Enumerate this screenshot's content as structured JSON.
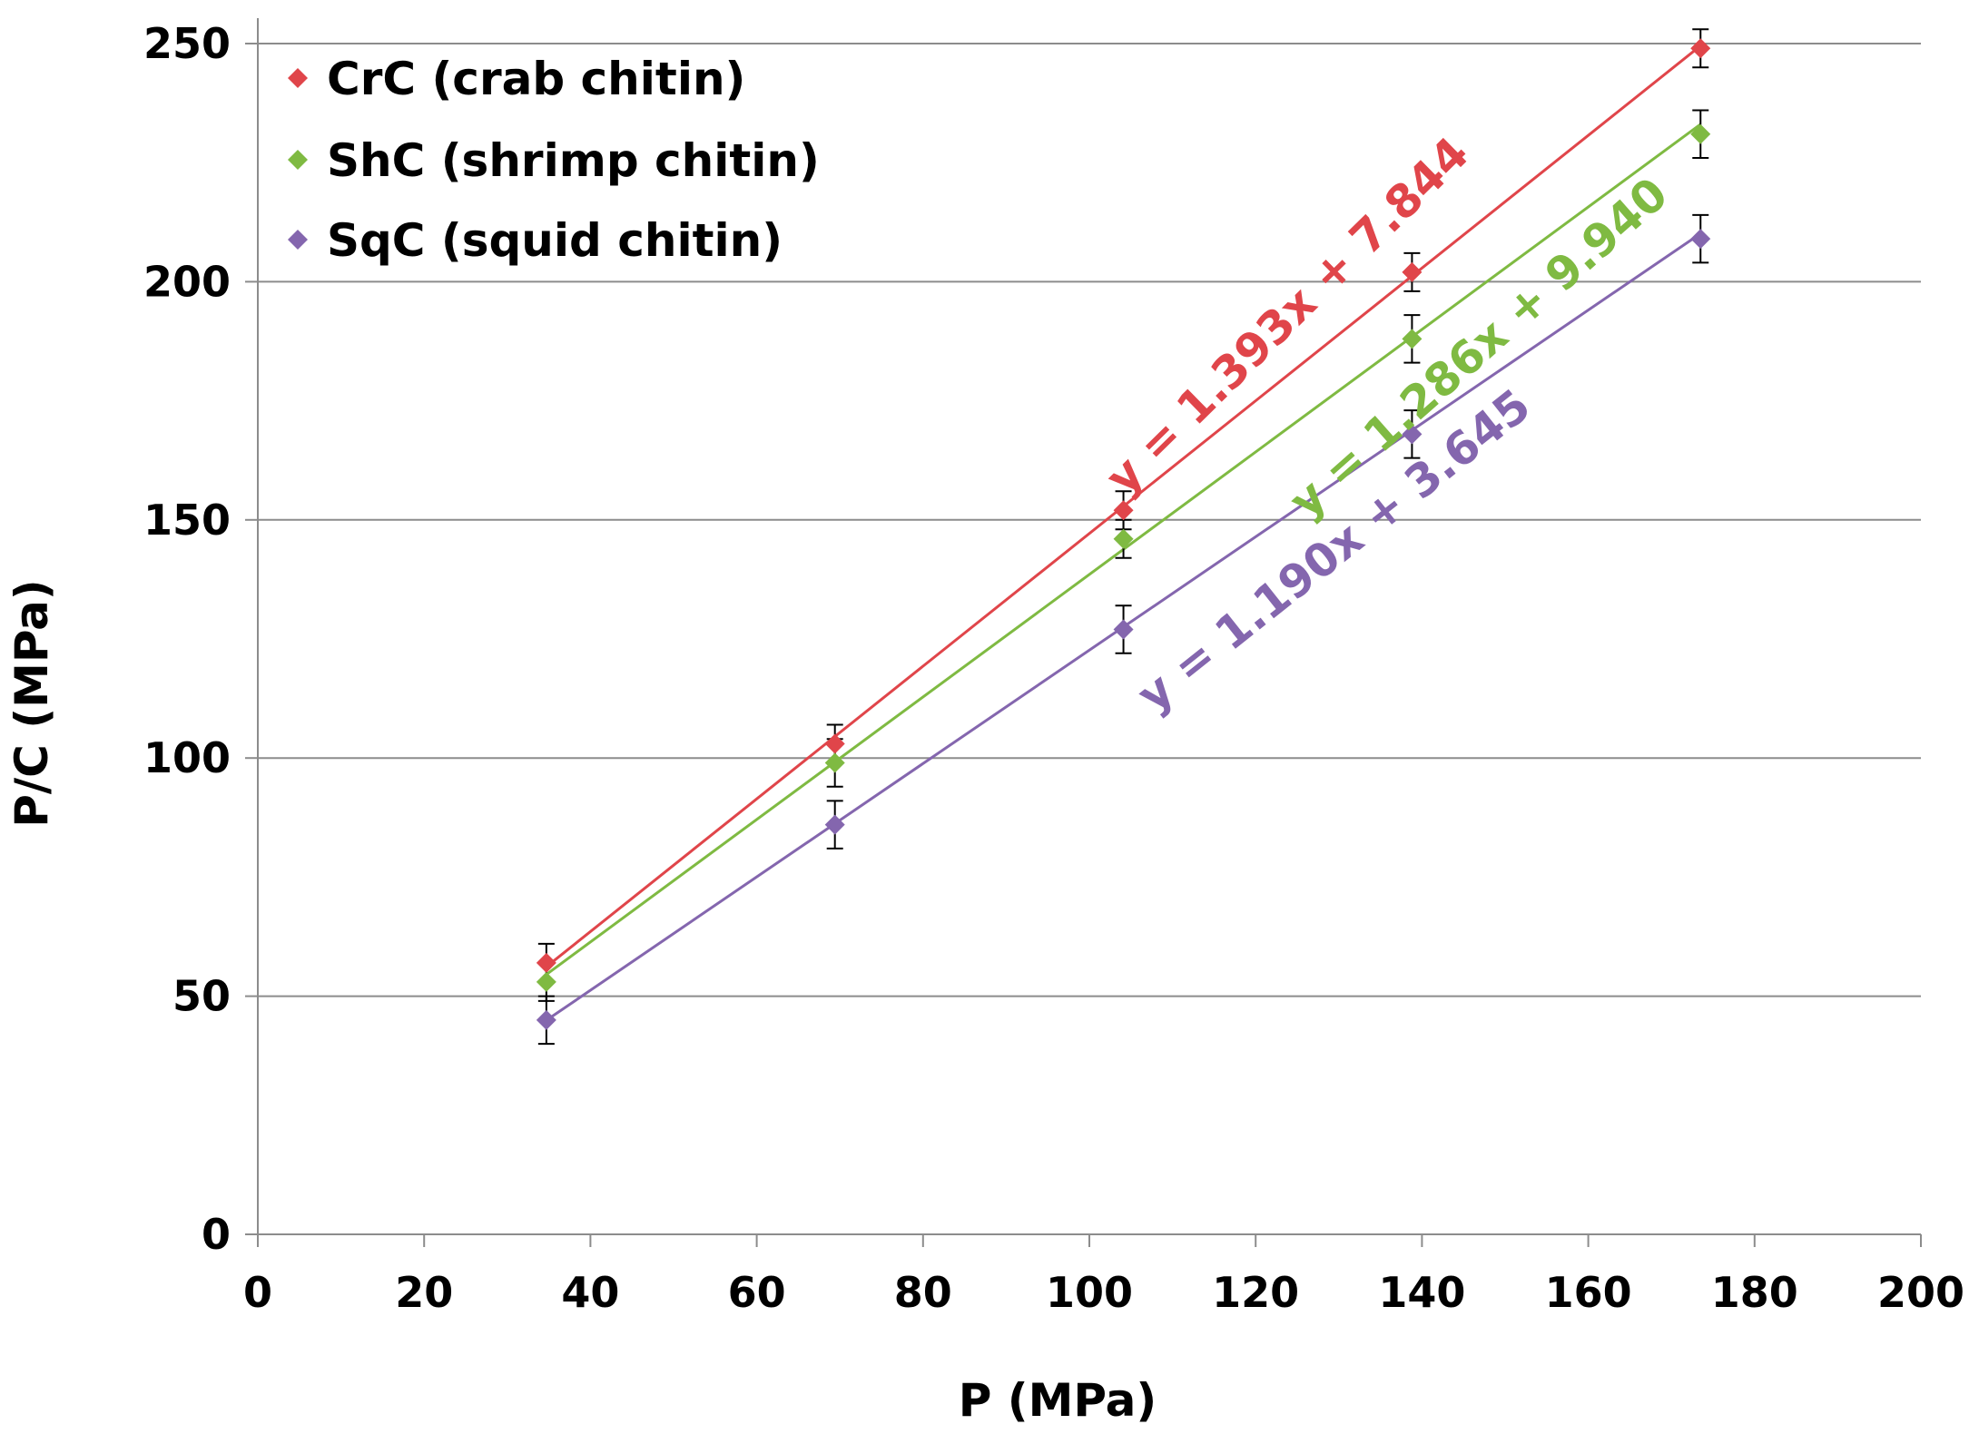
{
  "chart_data": {
    "type": "scatter",
    "title": "",
    "xlabel": "P (MPa)",
    "ylabel": "P/C (MPa)",
    "xlim": [
      0,
      200
    ],
    "ylim": [
      0,
      250
    ],
    "x_ticks": [
      0,
      20,
      40,
      60,
      80,
      100,
      120,
      140,
      160,
      180,
      200
    ],
    "y_ticks": [
      0,
      50,
      100,
      150,
      200,
      250
    ],
    "x_tick_labels": [
      "0",
      "20",
      "40",
      "60",
      "80",
      "100",
      "120",
      "140",
      "160",
      "180",
      "200"
    ],
    "y_tick_labels": [
      "0",
      "50",
      "100",
      "150",
      "200",
      "250"
    ],
    "grid": "horizontal",
    "legend_position": "top-left",
    "series": [
      {
        "name": "CrC (crab chitin)",
        "color": "#e0454a",
        "x": [
          34.7,
          69.4,
          104.1,
          138.8,
          173.5
        ],
        "y": [
          57,
          103,
          152,
          202,
          249
        ],
        "error": [
          4,
          4,
          4,
          4,
          4
        ],
        "fit": {
          "slope": 1.393,
          "intercept": 7.844,
          "equation": "y = 1.393x + 7.844"
        }
      },
      {
        "name": "ShC (shrimp chitin)",
        "color": "#7fba42",
        "x": [
          34.7,
          69.4,
          104.1,
          138.8,
          173.5
        ],
        "y": [
          53,
          99,
          146,
          188,
          231
        ],
        "error": [
          4,
          5,
          4,
          5,
          5
        ],
        "fit": {
          "slope": 1.286,
          "intercept": 9.94,
          "equation": "y = 1.286x + 9.940"
        }
      },
      {
        "name": "SqC (squid chitin)",
        "color": "#8466ae",
        "x": [
          34.7,
          69.4,
          104.1,
          138.8,
          173.5
        ],
        "y": [
          45,
          86,
          127,
          168,
          209
        ],
        "error": [
          5,
          5,
          5,
          5,
          5
        ],
        "fit": {
          "slope": 1.19,
          "intercept": 3.645,
          "equation": "y = 1.190x + 3.645"
        }
      }
    ]
  }
}
